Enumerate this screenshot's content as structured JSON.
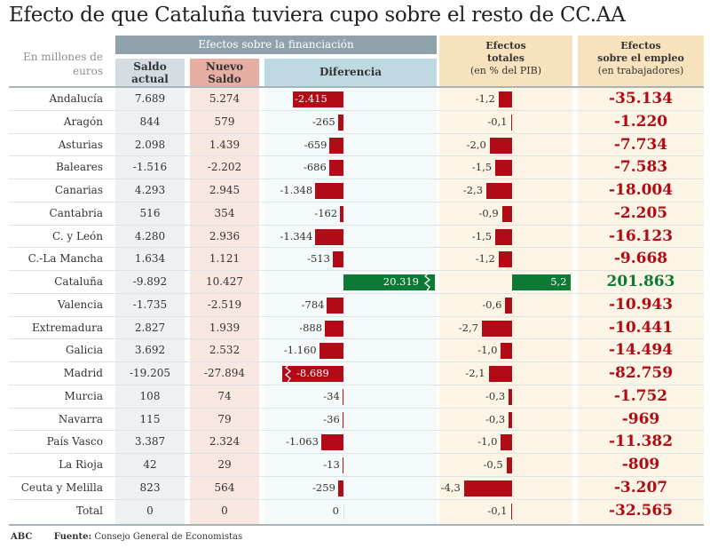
{
  "title": "Efecto de que Cataluña tuviera cupo sobre el resto de CC.AA",
  "header": {
    "units": "En millones de euros",
    "financiacion": "Efectos sobre la financiación",
    "saldo_actual": [
      "Saldo",
      "actual"
    ],
    "nuevo_saldo": [
      "Nuevo",
      "Saldo"
    ],
    "diferencia": "Diferencia",
    "efectos_totales": [
      "Efectos",
      "totales",
      "(en % del PIB)"
    ],
    "efectos_empleo": [
      "Efectos",
      "sobre el empleo",
      "(en trabajadores)"
    ]
  },
  "colors": {
    "negative": "#b00b16",
    "positive": "#0c7a35",
    "header_band": "#8fa1aa",
    "saldo": "#d4dce2",
    "nuevo": "#e7aea3",
    "diferencia": "#bfd9e3",
    "efectos": "#f7e2bd"
  },
  "chart_data": {
    "type": "table",
    "title": "Efecto de que Cataluña tuviera cupo sobre el resto de CC.AA",
    "columns": [
      "Saldo actual",
      "Nuevo Saldo",
      "Diferencia",
      "Efectos totales (en % del PIB)",
      "Efectos sobre el empleo (en trabajadores)"
    ],
    "units": "En millones de euros",
    "rows": [
      {
        "name": "Andalucía",
        "saldo": "7.689",
        "nuevo": "5.274",
        "dif": "-2.415",
        "dif_value": -2415,
        "tot": "-1,2",
        "tot_value": -1.2,
        "emp": "-35.134",
        "emp_value": -35134
      },
      {
        "name": "Aragón",
        "saldo": "844",
        "nuevo": "579",
        "dif": "-265",
        "dif_value": -265,
        "tot": "-0,1",
        "tot_value": -0.1,
        "emp": "-1.220",
        "emp_value": -1220
      },
      {
        "name": "Asturias",
        "saldo": "2.098",
        "nuevo": "1.439",
        "dif": "-659",
        "dif_value": -659,
        "tot": "-2,0",
        "tot_value": -2.0,
        "emp": "-7.734",
        "emp_value": -7734
      },
      {
        "name": "Baleares",
        "saldo": "-1.516",
        "nuevo": "-2.202",
        "dif": "-686",
        "dif_value": -686,
        "tot": "-1,5",
        "tot_value": -1.5,
        "emp": "-7.583",
        "emp_value": -7583
      },
      {
        "name": "Canarias",
        "saldo": "4.293",
        "nuevo": "2.945",
        "dif": "-1.348",
        "dif_value": -1348,
        "tot": "-2,3",
        "tot_value": -2.3,
        "emp": "-18.004",
        "emp_value": -18004
      },
      {
        "name": "Cantabria",
        "saldo": "516",
        "nuevo": "354",
        "dif": "-162",
        "dif_value": -162,
        "tot": "-0,9",
        "tot_value": -0.9,
        "emp": "-2.205",
        "emp_value": -2205
      },
      {
        "name": "C. y León",
        "saldo": "4.280",
        "nuevo": "2.936",
        "dif": "-1.344",
        "dif_value": -1344,
        "tot": "-1,5",
        "tot_value": -1.5,
        "emp": "-16.123",
        "emp_value": -16123
      },
      {
        "name": "C.-La Mancha",
        "saldo": "1.634",
        "nuevo": "1.121",
        "dif": "-513",
        "dif_value": -513,
        "tot": "-1,2",
        "tot_value": -1.2,
        "emp": "-9.668",
        "emp_value": -9668
      },
      {
        "name": "Cataluña",
        "saldo": "-9.892",
        "nuevo": "10.427",
        "dif": "20.319",
        "dif_value": 20319,
        "tot": "5,2",
        "tot_value": 5.2,
        "emp": "201.863",
        "emp_value": 201863
      },
      {
        "name": "Valencia",
        "saldo": "-1.735",
        "nuevo": "-2.519",
        "dif": "-784",
        "dif_value": -784,
        "tot": "-0,6",
        "tot_value": -0.6,
        "emp": "-10.943",
        "emp_value": -10943
      },
      {
        "name": "Extremadura",
        "saldo": "2.827",
        "nuevo": "1.939",
        "dif": "-888",
        "dif_value": -888,
        "tot": "-2,7",
        "tot_value": -2.7,
        "emp": "-10.441",
        "emp_value": -10441
      },
      {
        "name": "Galicia",
        "saldo": "3.692",
        "nuevo": "2.532",
        "dif": "-1.160",
        "dif_value": -1160,
        "tot": "-1,0",
        "tot_value": -1.0,
        "emp": "-14.494",
        "emp_value": -14494
      },
      {
        "name": "Madrid",
        "saldo": "-19.205",
        "nuevo": "-27.894",
        "dif": "-8.689",
        "dif_value": -8689,
        "tot": "-2,1",
        "tot_value": -2.1,
        "emp": "-82.759",
        "emp_value": -82759
      },
      {
        "name": "Murcia",
        "saldo": "108",
        "nuevo": "74",
        "dif": "-34",
        "dif_value": -34,
        "tot": "-0,3",
        "tot_value": -0.3,
        "emp": "-1.752",
        "emp_value": -1752
      },
      {
        "name": "Navarra",
        "saldo": "115",
        "nuevo": "79",
        "dif": "-36",
        "dif_value": -36,
        "tot": "-0,3",
        "tot_value": -0.3,
        "emp": "-969",
        "emp_value": -969
      },
      {
        "name": "País Vasco",
        "saldo": "3.387",
        "nuevo": "2.324",
        "dif": "-1.063",
        "dif_value": -1063,
        "tot": "-1,0",
        "tot_value": -1.0,
        "emp": "-11.382",
        "emp_value": -11382
      },
      {
        "name": "La Rioja",
        "saldo": "42",
        "nuevo": "29",
        "dif": "-13",
        "dif_value": -13,
        "tot": "-0,5",
        "tot_value": -0.5,
        "emp": "-809",
        "emp_value": -809
      },
      {
        "name": "Ceuta y Melilla",
        "saldo": "823",
        "nuevo": "564",
        "dif": "-259",
        "dif_value": -259,
        "tot": "-4,3",
        "tot_value": -4.3,
        "emp": "-3.207",
        "emp_value": -3207
      },
      {
        "name": "Total",
        "saldo": "0",
        "nuevo": "0",
        "dif": "0",
        "dif_value": 0,
        "tot": "-0,1",
        "tot_value": -0.1,
        "emp": "-32.565",
        "emp_value": -32565
      }
    ],
    "dif_axis_break_above": 2500,
    "tot_axis_break_above": 5.2
  },
  "footer": {
    "brand": "ABC",
    "source_label": "Fuente:",
    "source": "Consejo General de Economistas"
  }
}
